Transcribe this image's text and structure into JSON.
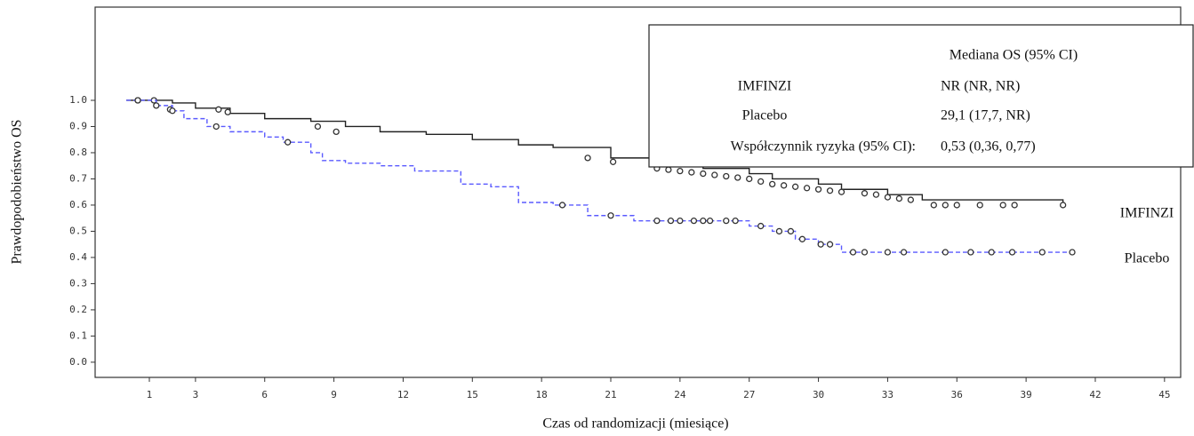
{
  "chart_data": {
    "type": "step",
    "y_label": "Prawdopodobieństwo OS",
    "x_label": "Czas od randomizacji (miesiące)",
    "xlim": [
      -1.35,
      45.7
    ],
    "ylim": [
      -0.058,
      1.356
    ],
    "xticks": [
      1,
      3,
      6,
      9,
      12,
      15,
      18,
      21,
      24,
      27,
      30,
      33,
      36,
      39,
      42,
      45
    ],
    "yticks": [
      {
        "value": 0,
        "label": "0.0"
      },
      0.1,
      0.2,
      0.3,
      0.4,
      0.5,
      0.6,
      0.7,
      0.8,
      0.9,
      {
        "value": 1,
        "label": "1.0"
      }
    ],
    "series": [
      {
        "name": "IMFINZI",
        "color": "#222222",
        "dash": false,
        "x": [
          0,
          2,
          3,
          4.5,
          6,
          8,
          9.5,
          11,
          13,
          15,
          17,
          18.5,
          21,
          23,
          25,
          27,
          28,
          30,
          31,
          33,
          34.5,
          40.6
        ],
        "values": [
          1.0,
          0.99,
          0.97,
          0.95,
          0.93,
          0.92,
          0.9,
          0.88,
          0.87,
          0.85,
          0.83,
          0.82,
          0.78,
          0.76,
          0.74,
          0.72,
          0.7,
          0.68,
          0.66,
          0.64,
          0.62,
          0.6
        ],
        "censor_x": [
          0.5,
          1.2,
          1.9,
          4.0,
          4.4,
          8.3,
          9.1,
          20.0,
          21.1,
          23,
          23.5,
          24,
          24.5,
          25,
          25.5,
          26,
          26.5,
          27,
          27.5,
          28,
          28.5,
          29,
          29.5,
          30,
          30.5,
          31,
          32,
          32.5,
          33,
          33.5,
          34,
          35,
          35.5,
          36,
          37,
          38,
          38.5,
          40.6
        ],
        "censor_values": [
          1.0,
          1.0,
          0.965,
          0.965,
          0.955,
          0.9,
          0.88,
          0.78,
          0.765,
          0.74,
          0.735,
          0.73,
          0.725,
          0.72,
          0.715,
          0.71,
          0.705,
          0.7,
          0.69,
          0.68,
          0.675,
          0.67,
          0.665,
          0.66,
          0.655,
          0.65,
          0.645,
          0.64,
          0.63,
          0.625,
          0.62,
          0.6,
          0.6,
          0.6,
          0.6,
          0.6,
          0.6,
          0.6
        ]
      },
      {
        "name": "Placebo",
        "color": "#5a5aff",
        "dash": true,
        "x": [
          0,
          1.3,
          2,
          2.5,
          3.5,
          4.5,
          6,
          6.8,
          8,
          8.5,
          9.5,
          11,
          12.5,
          14.5,
          15.8,
          17,
          18.5,
          20,
          22,
          27,
          28,
          29,
          30,
          31,
          41
        ],
        "values": [
          1.0,
          0.98,
          0.96,
          0.93,
          0.9,
          0.88,
          0.86,
          0.84,
          0.8,
          0.77,
          0.76,
          0.75,
          0.73,
          0.68,
          0.67,
          0.61,
          0.6,
          0.56,
          0.54,
          0.52,
          0.5,
          0.47,
          0.45,
          0.42,
          0.42
        ],
        "censor_x": [
          0.5,
          1.3,
          2,
          3.9,
          7,
          18.9,
          21,
          23,
          23.6,
          24,
          24.6,
          25,
          25.3,
          26,
          26.4,
          27.5,
          28.3,
          28.8,
          29.3,
          30.1,
          30.5,
          31.5,
          32,
          33,
          33.7,
          35.5,
          36.6,
          37.5,
          38.4,
          39.7,
          41
        ],
        "censor_values": [
          1.0,
          0.98,
          0.96,
          0.9,
          0.84,
          0.6,
          0.56,
          0.54,
          0.54,
          0.54,
          0.54,
          0.54,
          0.54,
          0.54,
          0.54,
          0.52,
          0.5,
          0.5,
          0.47,
          0.45,
          0.45,
          0.42,
          0.42,
          0.42,
          0.42,
          0.42,
          0.42,
          0.42,
          0.42,
          0.42,
          0.42
        ]
      }
    ],
    "legend_table": {
      "header": "Mediana OS (95% CI)",
      "rows": [
        [
          "IMFINZI",
          "NR (NR, NR)"
        ],
        [
          "Placebo",
          "29,1 (17,7, NR)"
        ],
        [
          "Współczynnik ryzyka (95% CI):",
          "0,53 (0,36, 0,77)"
        ]
      ]
    }
  }
}
